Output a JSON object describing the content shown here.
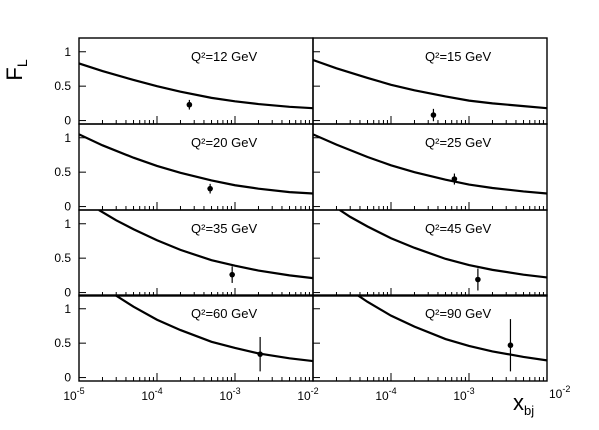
{
  "chart_data": {
    "type": "scatter",
    "ylabel_main": "F",
    "ylabel_sub": "L",
    "xlabel_main": "x",
    "xlabel_sub": "bj",
    "xscale": "log",
    "xlim": [
      1e-05,
      0.01
    ],
    "ylim": [
      -0.05,
      1.2
    ],
    "x_tick_labels": [
      {
        "base": "10",
        "exp": "-5"
      },
      {
        "base": "10",
        "exp": "-4"
      },
      {
        "base": "10",
        "exp": "-3"
      },
      {
        "base": "10",
        "exp": "-2"
      }
    ],
    "y_ticks": [
      0,
      0.5,
      1
    ],
    "y_tick_labels": [
      "0",
      "0.5",
      "1"
    ],
    "panels": [
      {
        "label": "Q²=12 GeV",
        "curve_x": [
          1e-05,
          2e-05,
          5e-05,
          0.0001,
          0.0002,
          0.0005,
          0.001,
          0.002,
          0.005,
          0.01
        ],
        "curve_y": [
          0.83,
          0.72,
          0.59,
          0.5,
          0.42,
          0.33,
          0.28,
          0.24,
          0.2,
          0.18
        ],
        "point": {
          "x": 0.00026,
          "y": 0.23,
          "err": 0.07
        }
      },
      {
        "label": "Q²=15 GeV",
        "curve_x": [
          1e-05,
          2e-05,
          5e-05,
          0.0001,
          0.0002,
          0.0005,
          0.001,
          0.002,
          0.005,
          0.01
        ],
        "curve_y": [
          0.88,
          0.76,
          0.62,
          0.52,
          0.44,
          0.35,
          0.29,
          0.25,
          0.21,
          0.18
        ],
        "point": {
          "x": 0.00035,
          "y": 0.08,
          "err": 0.09
        }
      },
      {
        "label": "Q²=20 GeV",
        "curve_x": [
          1e-05,
          2e-05,
          5e-05,
          0.0001,
          0.0002,
          0.0005,
          0.001,
          0.002,
          0.005,
          0.01
        ],
        "curve_y": [
          1.05,
          0.89,
          0.71,
          0.59,
          0.49,
          0.38,
          0.31,
          0.26,
          0.21,
          0.19
        ],
        "point": {
          "x": 0.00048,
          "y": 0.26,
          "err": 0.07
        }
      },
      {
        "label": "Q²=25 GeV",
        "curve_x": [
          1e-05,
          2e-05,
          5e-05,
          0.0001,
          0.0002,
          0.0005,
          0.001,
          0.002,
          0.005,
          0.01
        ],
        "curve_y": [
          1.05,
          0.9,
          0.72,
          0.6,
          0.5,
          0.39,
          0.32,
          0.27,
          0.22,
          0.19
        ],
        "point": {
          "x": 0.00065,
          "y": 0.4,
          "err": 0.08
        }
      },
      {
        "label": "Q²=35 GeV",
        "curve_x": [
          1.8e-05,
          3e-05,
          5e-05,
          0.0001,
          0.0002,
          0.0005,
          0.001,
          0.002,
          0.005,
          0.01
        ],
        "curve_y": [
          1.2,
          1.05,
          0.92,
          0.76,
          0.62,
          0.47,
          0.39,
          0.32,
          0.25,
          0.21
        ],
        "point": {
          "x": 0.00092,
          "y": 0.26,
          "err": 0.12
        }
      },
      {
        "label": "Q²=45 GeV",
        "curve_x": [
          2.2e-05,
          3e-05,
          5e-05,
          0.0001,
          0.0002,
          0.0005,
          0.001,
          0.002,
          0.005,
          0.01
        ],
        "curve_y": [
          1.2,
          1.1,
          0.96,
          0.79,
          0.65,
          0.49,
          0.4,
          0.33,
          0.26,
          0.22
        ],
        "point": {
          "x": 0.0013,
          "y": 0.19,
          "err": 0.16
        }
      },
      {
        "label": "Q²=60 GeV",
        "curve_x": [
          2.9e-05,
          5e-05,
          0.0001,
          0.0002,
          0.0005,
          0.001,
          0.002,
          0.005,
          0.01
        ],
        "curve_y": [
          1.2,
          1.03,
          0.84,
          0.69,
          0.52,
          0.43,
          0.35,
          0.28,
          0.24
        ],
        "point": {
          "x": 0.0021,
          "y": 0.34,
          "err": 0.25
        }
      },
      {
        "label": "Q²=90 GeV",
        "curve_x": [
          3.7e-05,
          5e-05,
          0.0001,
          0.0002,
          0.0005,
          0.001,
          0.002,
          0.005,
          0.01
        ],
        "curve_y": [
          1.2,
          1.1,
          0.9,
          0.74,
          0.56,
          0.46,
          0.38,
          0.3,
          0.25
        ],
        "point": {
          "x": 0.0034,
          "y": 0.47,
          "err": 0.38
        }
      }
    ]
  }
}
